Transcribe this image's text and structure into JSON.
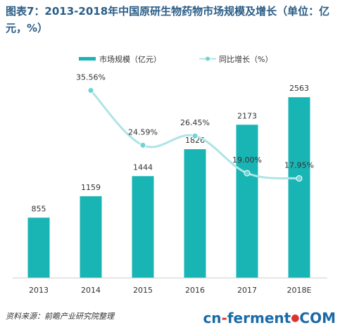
{
  "title": "图表7：2013-2018年中国原研生物药物市场规模及增长（单位：亿元，%）",
  "source": "资料来源：前瞻产业研究院整理",
  "logo": {
    "prefix": "cn",
    "dash": "-",
    "main": "ferment",
    "dot": "●",
    "suffix": "COM"
  },
  "colors": {
    "bar": "#19b5b4",
    "line": "#aee4e6",
    "point": "#6fd3d4",
    "title": "#2b5d86"
  },
  "chart_data": {
    "type": "bar+line",
    "categories": [
      "2013",
      "2014",
      "2015",
      "2016",
      "2017",
      "2018E"
    ],
    "series": [
      {
        "name": "市场规模（亿元）",
        "type": "bar",
        "values": [
          855,
          1159,
          1444,
          1826,
          2173,
          2563
        ],
        "labels": [
          "855",
          "1159",
          "1444",
          "1826",
          "2173",
          "2563"
        ]
      },
      {
        "name": "同比增长（%）",
        "type": "line",
        "values": [
          null,
          35.56,
          24.59,
          26.45,
          19.0,
          17.95
        ],
        "labels": [
          "",
          "35.56%",
          "24.59%",
          "26.45%",
          "19.00%",
          "17.95%"
        ]
      }
    ],
    "legend_position": "top",
    "grid": false,
    "bar_ylim": [
      0,
      2800
    ],
    "line_ylim": [
      0,
      40
    ]
  }
}
